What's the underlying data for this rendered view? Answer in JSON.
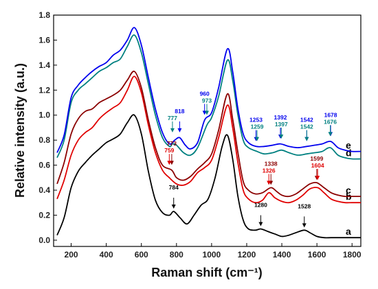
{
  "chart_data": {
    "type": "line",
    "xlabel": "Raman shift (cm⁻¹)",
    "ylabel": "Relative intensity (a.u.)",
    "xlim": [
      100,
      1850
    ],
    "ylim": [
      -0.05,
      1.8
    ],
    "xticks": [
      200,
      400,
      600,
      800,
      1000,
      1200,
      1400,
      1600,
      1800
    ],
    "yticks": [
      0.0,
      0.2,
      0.4,
      0.6,
      0.8,
      1.0,
      1.2,
      1.4,
      1.6,
      1.8
    ],
    "grid": false,
    "series": [
      {
        "name": "a",
        "color": "#000000",
        "x": [
          120,
          160,
          200,
          240,
          280,
          320,
          360,
          400,
          440,
          480,
          520,
          560,
          600,
          640,
          680,
          720,
          760,
          784,
          820,
          860,
          900,
          940,
          980,
          1020,
          1060,
          1090,
          1120,
          1150,
          1180,
          1210,
          1250,
          1280,
          1320,
          1360,
          1400,
          1440,
          1480,
          1528,
          1560,
          1600,
          1640,
          1680,
          1720,
          1760,
          1800,
          1850
        ],
        "y": [
          0.04,
          0.18,
          0.42,
          0.55,
          0.62,
          0.68,
          0.73,
          0.78,
          0.81,
          0.85,
          0.94,
          1.0,
          0.85,
          0.55,
          0.32,
          0.22,
          0.2,
          0.23,
          0.18,
          0.13,
          0.2,
          0.28,
          0.33,
          0.5,
          0.75,
          0.84,
          0.65,
          0.35,
          0.16,
          0.09,
          0.08,
          0.09,
          0.07,
          0.05,
          0.03,
          0.04,
          0.06,
          0.08,
          0.06,
          0.03,
          0.02,
          0.02,
          0.02,
          0.02,
          0.02,
          0.02
        ]
      },
      {
        "name": "b",
        "color": "#e00000",
        "x": [
          120,
          160,
          200,
          240,
          280,
          320,
          360,
          400,
          440,
          480,
          520,
          560,
          600,
          640,
          680,
          720,
          759,
          800,
          840,
          880,
          920,
          960,
          1000,
          1040,
          1090,
          1120,
          1150,
          1180,
          1210,
          1250,
          1290,
          1326,
          1360,
          1400,
          1440,
          1480,
          1520,
          1560,
          1604,
          1640,
          1680,
          1720,
          1760,
          1800,
          1850
        ],
        "y": [
          0.33,
          0.48,
          0.68,
          0.8,
          0.86,
          0.9,
          0.97,
          1.02,
          1.06,
          1.1,
          1.2,
          1.31,
          1.18,
          0.92,
          0.7,
          0.56,
          0.5,
          0.45,
          0.44,
          0.47,
          0.54,
          0.58,
          0.64,
          0.82,
          1.08,
          0.9,
          0.62,
          0.4,
          0.33,
          0.3,
          0.32,
          0.38,
          0.34,
          0.31,
          0.3,
          0.32,
          0.36,
          0.41,
          0.42,
          0.38,
          0.33,
          0.31,
          0.3,
          0.3,
          0.3
        ]
      },
      {
        "name": "c",
        "color": "#8b0000",
        "x": [
          120,
          160,
          200,
          240,
          280,
          320,
          360,
          400,
          440,
          480,
          520,
          560,
          600,
          640,
          680,
          720,
          773,
          800,
          840,
          880,
          920,
          960,
          1000,
          1040,
          1090,
          1120,
          1150,
          1180,
          1210,
          1250,
          1290,
          1338,
          1370,
          1400,
          1440,
          1480,
          1520,
          1560,
          1599,
          1640,
          1680,
          1720,
          1760,
          1800,
          1850
        ],
        "y": [
          0.45,
          0.62,
          0.85,
          0.97,
          1.03,
          1.05,
          1.1,
          1.13,
          1.16,
          1.2,
          1.28,
          1.35,
          1.22,
          0.96,
          0.74,
          0.6,
          0.56,
          0.5,
          0.48,
          0.51,
          0.57,
          0.62,
          0.69,
          0.88,
          1.17,
          0.97,
          0.7,
          0.47,
          0.4,
          0.37,
          0.38,
          0.42,
          0.39,
          0.36,
          0.35,
          0.37,
          0.41,
          0.45,
          0.46,
          0.42,
          0.38,
          0.36,
          0.35,
          0.35,
          0.35
        ]
      },
      {
        "name": "d",
        "color": "#008080",
        "x": [
          120,
          160,
          200,
          240,
          280,
          320,
          360,
          400,
          440,
          480,
          520,
          560,
          600,
          640,
          680,
          720,
          760,
          777,
          800,
          840,
          880,
          920,
          973,
          1000,
          1040,
          1090,
          1120,
          1150,
          1180,
          1210,
          1259,
          1300,
          1350,
          1397,
          1440,
          1490,
          1542,
          1590,
          1630,
          1676,
          1720,
          1760,
          1800,
          1850
        ],
        "y": [
          0.66,
          0.8,
          1.1,
          1.2,
          1.25,
          1.3,
          1.35,
          1.38,
          1.42,
          1.45,
          1.55,
          1.64,
          1.5,
          1.25,
          1.0,
          0.82,
          0.75,
          0.77,
          0.76,
          0.7,
          0.68,
          0.74,
          0.92,
          0.98,
          1.15,
          1.44,
          1.28,
          1.0,
          0.8,
          0.74,
          0.71,
          0.69,
          0.7,
          0.72,
          0.7,
          0.68,
          0.69,
          0.7,
          0.71,
          0.74,
          0.68,
          0.66,
          0.65,
          0.65
        ]
      },
      {
        "name": "e",
        "color": "#0000ee",
        "x": [
          120,
          160,
          200,
          240,
          280,
          320,
          360,
          400,
          440,
          480,
          520,
          560,
          600,
          640,
          680,
          720,
          760,
          790,
          818,
          850,
          880,
          920,
          960,
          1000,
          1040,
          1090,
          1120,
          1150,
          1180,
          1210,
          1253,
          1300,
          1350,
          1392,
          1440,
          1490,
          1542,
          1590,
          1630,
          1678,
          1720,
          1760,
          1800,
          1850
        ],
        "y": [
          0.7,
          0.84,
          1.14,
          1.24,
          1.3,
          1.35,
          1.39,
          1.42,
          1.48,
          1.52,
          1.6,
          1.7,
          1.56,
          1.3,
          1.05,
          0.86,
          0.77,
          0.8,
          0.82,
          0.76,
          0.73,
          0.78,
          0.96,
          1.02,
          1.22,
          1.53,
          1.35,
          1.05,
          0.85,
          0.78,
          0.75,
          0.75,
          0.76,
          0.77,
          0.75,
          0.74,
          0.75,
          0.76,
          0.77,
          0.79,
          0.74,
          0.72,
          0.71,
          0.71
        ]
      }
    ],
    "annotations": [
      {
        "text": "784",
        "x": 784,
        "y": 0.23,
        "color": "#000000",
        "row": 0
      },
      {
        "text": "1280",
        "x": 1280,
        "y": 0.09,
        "color": "#000000",
        "row": 0
      },
      {
        "text": "1528",
        "x": 1528,
        "y": 0.08,
        "color": "#000000",
        "row": 0
      },
      {
        "text": "773",
        "x": 773,
        "y": 0.58,
        "color": "#8b0000",
        "row": 0
      },
      {
        "text": "759",
        "x": 759,
        "y": 0.58,
        "color": "#e00000",
        "row": 1
      },
      {
        "text": "1338",
        "x": 1338,
        "y": 0.42,
        "color": "#8b0000",
        "row": 0
      },
      {
        "text": "1326",
        "x": 1326,
        "y": 0.42,
        "color": "#e00000",
        "row": 1
      },
      {
        "text": "1599",
        "x": 1599,
        "y": 0.46,
        "color": "#8b0000",
        "row": 0
      },
      {
        "text": "1604",
        "x": 1604,
        "y": 0.46,
        "color": "#e00000",
        "row": 1
      },
      {
        "text": "818",
        "x": 818,
        "y": 0.84,
        "color": "#0000ee",
        "row": 0
      },
      {
        "text": "777",
        "x": 777,
        "y": 0.84,
        "color": "#008080",
        "row": 1
      },
      {
        "text": "960",
        "x": 960,
        "y": 0.98,
        "color": "#0000ee",
        "row": 0
      },
      {
        "text": "973",
        "x": 973,
        "y": 0.98,
        "color": "#008080",
        "row": 1
      },
      {
        "text": "1253",
        "x": 1253,
        "y": 0.77,
        "color": "#0000ee",
        "row": 0
      },
      {
        "text": "1259",
        "x": 1259,
        "y": 0.77,
        "color": "#008080",
        "row": 1
      },
      {
        "text": "1392",
        "x": 1392,
        "y": 0.79,
        "color": "#0000ee",
        "row": 0
      },
      {
        "text": "1397",
        "x": 1397,
        "y": 0.79,
        "color": "#008080",
        "row": 1
      },
      {
        "text": "1542",
        "x": 1542,
        "y": 0.77,
        "color": "#0000ee",
        "row": 0
      },
      {
        "text": "1542",
        "x": 1542,
        "y": 0.77,
        "color": "#008080",
        "row": 1
      },
      {
        "text": "1678",
        "x": 1678,
        "y": 0.81,
        "color": "#0000ee",
        "row": 0
      },
      {
        "text": "1676",
        "x": 1676,
        "y": 0.81,
        "color": "#008080",
        "row": 1
      }
    ]
  }
}
